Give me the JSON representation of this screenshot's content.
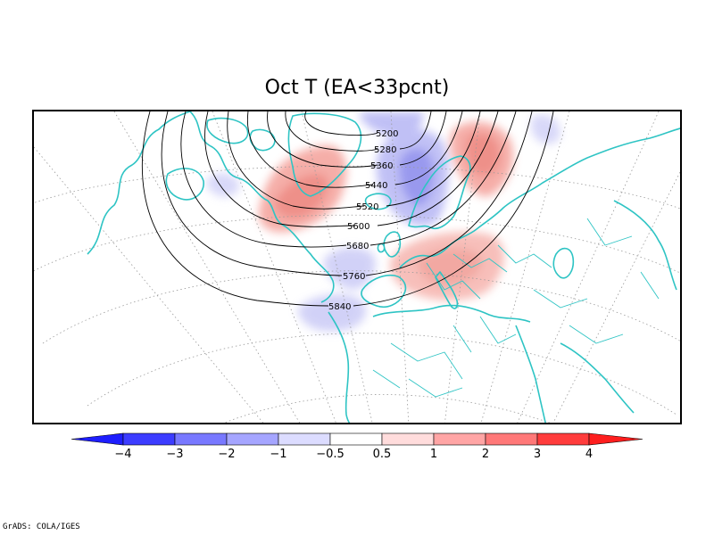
{
  "title": "Oct T (EA<33pcnt)",
  "credit": "GrADS: COLA/IGES",
  "contours": {
    "labels": [
      "5200",
      "5280",
      "5360",
      "5440",
      "5520",
      "5600",
      "5680",
      "5760",
      "5840"
    ]
  },
  "colorbar": {
    "labels": [
      "−4",
      "−3",
      "−2",
      "−1",
      "−0.5",
      "0.5",
      "1",
      "2",
      "3",
      "4"
    ],
    "colors": [
      "#1e1efe",
      "#3c3cff",
      "#7878ff",
      "#a5a5ff",
      "#dcdcff",
      "#ffffff",
      "#ffdcdc",
      "#ffa5a5",
      "#ff7878",
      "#ff3c3c",
      "#fe1e1e"
    ]
  },
  "colors": {
    "coast": "#2ec4c4",
    "grid": "#999999",
    "warm": "#f08a80",
    "cold": "#8a8af0"
  }
}
